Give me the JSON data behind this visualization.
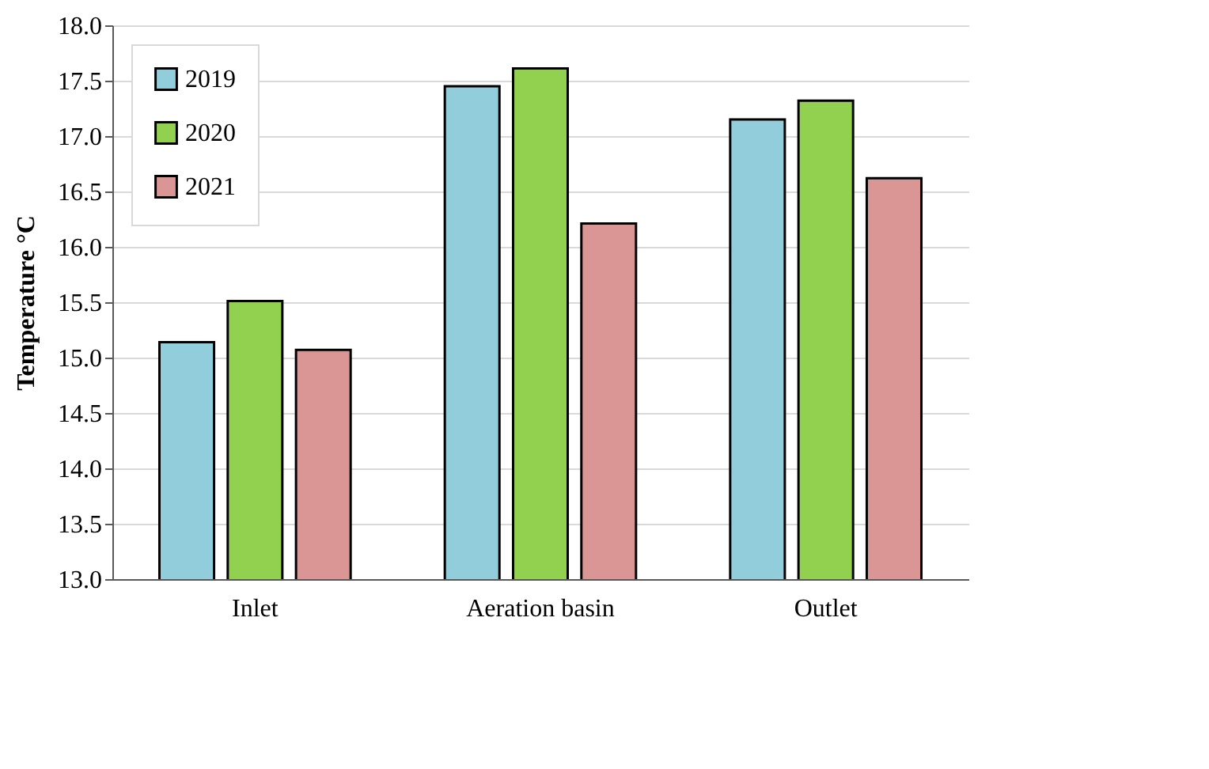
{
  "chart_data": {
    "type": "bar",
    "ylabel": "Temperature °C",
    "categories": [
      "Inlet",
      "Aeration basin",
      "Outlet"
    ],
    "series": [
      {
        "name": "2019",
        "color": "#92cddc",
        "values": [
          15.14,
          17.45,
          17.15
        ]
      },
      {
        "name": "2020",
        "color": "#92d050",
        "values": [
          15.51,
          17.61,
          17.32
        ]
      },
      {
        "name": "2021",
        "color": "#d99694",
        "values": [
          15.07,
          16.21,
          16.62
        ]
      }
    ],
    "ylim": [
      13.0,
      18.0
    ],
    "yticks": [
      {
        "value": 13,
        "label": "13.0"
      },
      {
        "value": 13.5,
        "label": "13.5"
      },
      {
        "value": 14,
        "label": "14.0"
      },
      {
        "value": 14.5,
        "label": "14.5"
      },
      {
        "value": 15,
        "label": "15.0"
      },
      {
        "value": 15.5,
        "label": "15.5"
      },
      {
        "value": 16,
        "label": "16.0"
      },
      {
        "value": 16.5,
        "label": "16.5"
      },
      {
        "value": 17,
        "label": "17.0"
      },
      {
        "value": 17.5,
        "label": "17.5"
      },
      {
        "value": 18,
        "label": "18.0"
      }
    ],
    "grid": "y",
    "legend": "top left"
  }
}
